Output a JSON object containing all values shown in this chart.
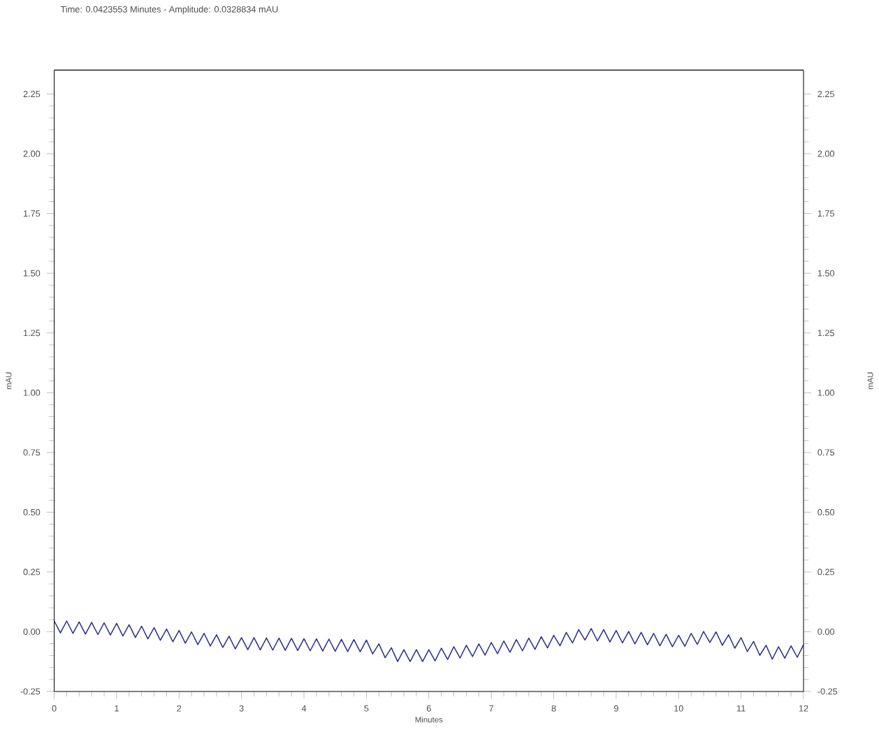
{
  "chart_data": {
    "type": "line",
    "title": "Time: 0.0423553 Minutes - Amplitude: 0.0328834 mAU",
    "xlabel": "Minutes",
    "ylabel": "mAU",
    "y2label": "mAU",
    "xlim": [
      0,
      12
    ],
    "xticks": [
      0,
      1,
      2,
      3,
      4,
      5,
      6,
      7,
      8,
      9,
      10,
      11,
      12
    ],
    "ylim": [
      -0.25,
      2.35
    ],
    "yticks": [
      {
        "value": -0.25,
        "label": "-0.25"
      },
      {
        "value": 0,
        "label": "0.00"
      },
      {
        "value": 0.25,
        "label": "0.25"
      },
      {
        "value": 0.5,
        "label": "0.50"
      },
      {
        "value": 0.75,
        "label": "0.75"
      },
      {
        "value": 1,
        "label": "1.00"
      },
      {
        "value": 1.25,
        "label": "1.25"
      },
      {
        "value": 1.5,
        "label": "1.50"
      },
      {
        "value": 1.75,
        "label": "1.75"
      },
      {
        "value": 2,
        "label": "2.00"
      },
      {
        "value": 2.25,
        "label": "2.25"
      }
    ],
    "y2lim": [
      -0.25,
      2.35
    ],
    "y2ticks": [
      {
        "value": -0.25,
        "label": "-0.25"
      },
      {
        "value": 0,
        "label": "0.00"
      },
      {
        "value": 0.25,
        "label": "0.25"
      },
      {
        "value": 0.5,
        "label": "0.50"
      },
      {
        "value": 0.75,
        "label": "0.75"
      },
      {
        "value": 1,
        "label": "1.00"
      },
      {
        "value": 1.25,
        "label": "1.25"
      },
      {
        "value": 1.5,
        "label": "1.50"
      },
      {
        "value": 1.75,
        "label": "1.75"
      },
      {
        "value": 2,
        "label": "2.00"
      },
      {
        "value": 2.25,
        "label": "2.25"
      }
    ],
    "grid": false,
    "legend": false,
    "marker": "none",
    "line_style": "solid",
    "series": [
      {
        "color": "#2b2f8a",
        "x": [
          0,
          0.1,
          0.2,
          0.3,
          0.4,
          0.5,
          0.6,
          0.7,
          0.8,
          0.9,
          1,
          1.1,
          1.2,
          1.3,
          1.4,
          1.5,
          1.6,
          1.7,
          1.8,
          1.9,
          2,
          2.1,
          2.2,
          2.3,
          2.4,
          2.5,
          2.6,
          2.7,
          2.8,
          2.9,
          3,
          3.1,
          3.2,
          3.3,
          3.4,
          3.5,
          3.6,
          3.7,
          3.8,
          3.9,
          4,
          4.1,
          4.2,
          4.3,
          4.4,
          4.5,
          4.6,
          4.7,
          4.8,
          4.9,
          5,
          5.1,
          5.2,
          5.3,
          5.4,
          5.5,
          5.6,
          5.7,
          5.8,
          5.9,
          6,
          6.1,
          6.2,
          6.3,
          6.4,
          6.5,
          6.6,
          6.7,
          6.8,
          6.9,
          7,
          7.1,
          7.2,
          7.3,
          7.4,
          7.5,
          7.6,
          7.7,
          7.8,
          7.9,
          8,
          8.1,
          8.2,
          8.3,
          8.4,
          8.5,
          8.6,
          8.7,
          8.8,
          8.9,
          9,
          9.1,
          9.2,
          9.3,
          9.4,
          9.5,
          9.6,
          9.7,
          9.8,
          9.9,
          10,
          10.1,
          10.2,
          10.3,
          10.4,
          10.5,
          10.6,
          10.7,
          10.8,
          10.9,
          11,
          11.1,
          11.2,
          11.3,
          11.4,
          11.5,
          11.6,
          11.7,
          11.8,
          11.9,
          12
        ],
        "values": [
          0.045,
          -0.005,
          0.045,
          -0.007,
          0.041,
          -0.01,
          0.039,
          -0.012,
          0.037,
          -0.014,
          0.035,
          -0.018,
          0.029,
          -0.024,
          0.023,
          -0.03,
          0.017,
          -0.036,
          0.011,
          -0.042,
          0.005,
          -0.048,
          -0.001,
          -0.054,
          -0.007,
          -0.06,
          -0.013,
          -0.066,
          -0.019,
          -0.072,
          -0.025,
          -0.075,
          -0.025,
          -0.076,
          -0.026,
          -0.077,
          -0.027,
          -0.078,
          -0.028,
          -0.079,
          -0.029,
          -0.08,
          -0.03,
          -0.081,
          -0.031,
          -0.082,
          -0.032,
          -0.083,
          -0.033,
          -0.084,
          -0.035,
          -0.093,
          -0.051,
          -0.109,
          -0.067,
          -0.125,
          -0.075,
          -0.125,
          -0.075,
          -0.125,
          -0.075,
          -0.122,
          -0.069,
          -0.116,
          -0.063,
          -0.11,
          -0.057,
          -0.104,
          -0.051,
          -0.098,
          -0.045,
          -0.092,
          -0.039,
          -0.086,
          -0.033,
          -0.08,
          -0.027,
          -0.074,
          -0.021,
          -0.068,
          -0.015,
          -0.059,
          -0.003,
          -0.047,
          0.009,
          -0.035,
          0.013,
          -0.039,
          0.009,
          -0.043,
          0.005,
          -0.047,
          0.001,
          -0.051,
          -0.003,
          -0.055,
          -0.007,
          -0.059,
          -0.011,
          -0.063,
          -0.015,
          -0.061,
          -0.007,
          -0.053,
          0.001,
          -0.045,
          -0.001,
          -0.057,
          -0.013,
          -0.069,
          -0.025,
          -0.083,
          -0.041,
          -0.099,
          -0.057,
          -0.115,
          -0.063,
          -0.111,
          -0.059,
          -0.107,
          -0.055
        ]
      }
    ]
  }
}
